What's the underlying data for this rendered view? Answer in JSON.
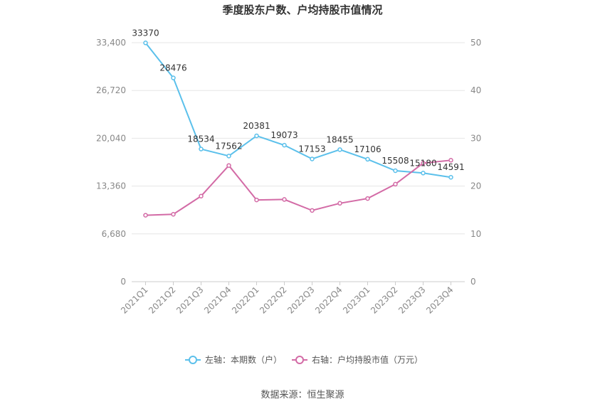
{
  "chart_data": {
    "type": "line",
    "title": "季度股东户数、户均持股市值情况",
    "categories": [
      "2021Q1",
      "2021Q2",
      "2021Q3",
      "2021Q4",
      "2022Q1",
      "2022Q2",
      "2022Q3",
      "2022Q4",
      "2023Q1",
      "2023Q2",
      "2023Q3",
      "2023Q4"
    ],
    "y_left": {
      "ticks": [
        "0",
        "6,680",
        "13,360",
        "20,040",
        "26,720",
        "33,400"
      ],
      "range": [
        0,
        33400
      ]
    },
    "y_right": {
      "ticks": [
        "0",
        "10",
        "20",
        "30",
        "40",
        "50"
      ],
      "range": [
        0,
        50
      ]
    },
    "series": [
      {
        "name": "左轴：本期数（户）",
        "axis": "left",
        "color": "#5bc0eb",
        "values": [
          33370,
          28476,
          18534,
          17562,
          20381,
          19073,
          17153,
          18455,
          17106,
          15508,
          15180,
          14591
        ],
        "labels": [
          "33370",
          "28476",
          "18534",
          "17562",
          "20381",
          "19073",
          "17153",
          "18455",
          "17106",
          "15508",
          "15180",
          "14591"
        ]
      },
      {
        "name": "右轴：户均持股市值（万元）",
        "axis": "right",
        "color": "#d36ba6",
        "values": [
          13.9,
          14.1,
          17.9,
          24.3,
          17.1,
          17.2,
          14.9,
          16.4,
          17.4,
          20.4,
          24.8,
          25.4
        ]
      }
    ],
    "grid": true,
    "legend_position": "bottom"
  },
  "source": "数据来源：恒生聚源"
}
